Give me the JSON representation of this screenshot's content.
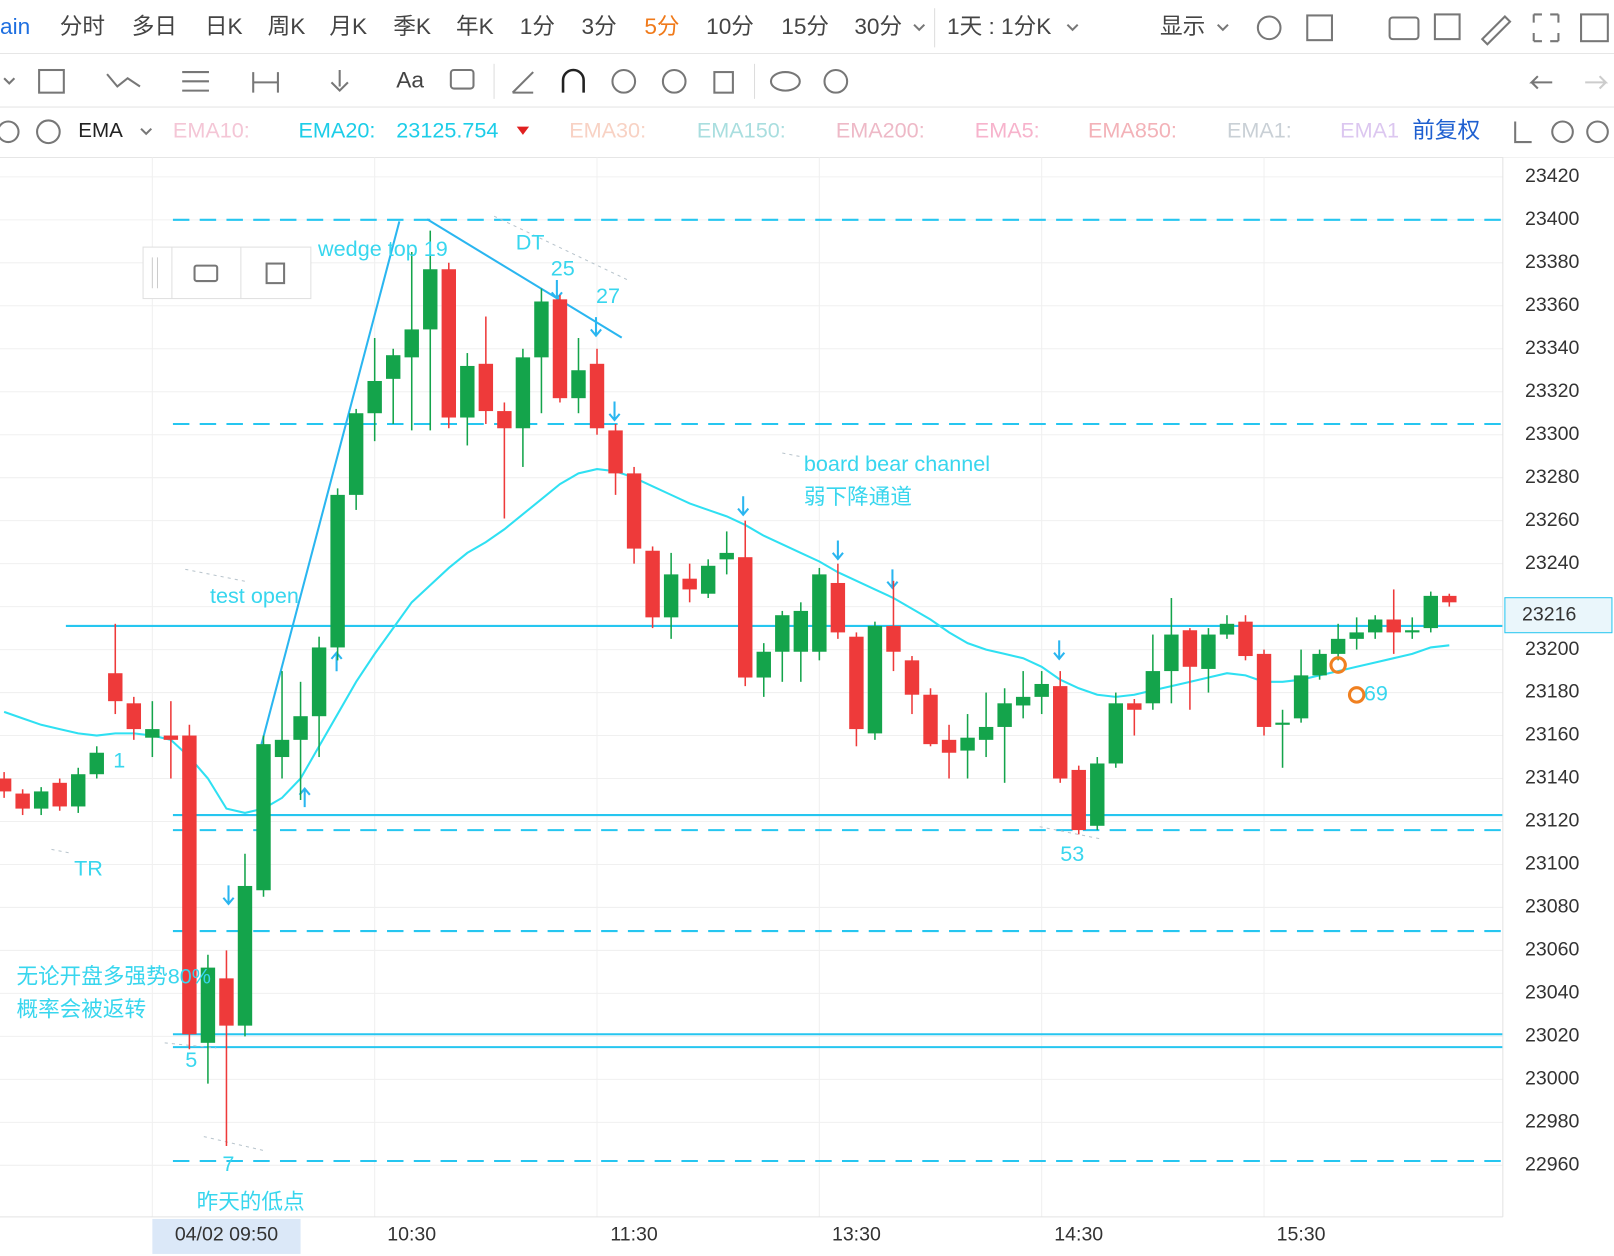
{
  "toolbar": {
    "periods": [
      "ain",
      "分时",
      "多日",
      "日K",
      "周K",
      "月K",
      "季K",
      "年K",
      "1分",
      "3分",
      "5分",
      "10分",
      "15分",
      "30分"
    ],
    "active_index": 10,
    "active_color": "#f07a1a",
    "interval": "1天 : 1分K",
    "display": "显示",
    "text_tool": "Aa"
  },
  "indicator_bar": {
    "name": "EMA",
    "items": [
      {
        "label": "EMA10:",
        "color": "#f4c6d6"
      },
      {
        "label": "EMA20:",
        "value": 23125.754,
        "color": "#1ccde8"
      },
      {
        "label": "EMA30:",
        "color": "#f8d2c4"
      },
      {
        "label": "EMA150:",
        "color": "#a9dedf"
      },
      {
        "label": "EMA200:",
        "color": "#eeb9c7"
      },
      {
        "label": "EMA5:",
        "color": "#f7b3cc"
      },
      {
        "label": "EMA850:",
        "color": "#f3b2b8"
      },
      {
        "label": "EMA1:",
        "color": "#c9d0d6"
      },
      {
        "label": "EMA1",
        "color": "#dcc7f0"
      }
    ],
    "adjust": "前复权"
  },
  "chart_data": {
    "type": "candlestick",
    "categories": [
      null,
      null,
      null,
      null,
      null,
      null,
      null,
      null,
      null,
      null,
      null,
      null,
      null,
      null,
      null,
      null,
      null,
      null,
      null,
      null,
      null,
      null,
      "10:30",
      null,
      null,
      null,
      null,
      null,
      null,
      null,
      null,
      null,
      null,
      null,
      "11:30",
      null,
      null,
      null,
      null,
      null,
      null,
      null,
      null,
      null,
      null,
      null,
      "13:30",
      null,
      null,
      null,
      null,
      null,
      null,
      null,
      null,
      null,
      null,
      null,
      "14:30",
      null,
      null,
      null,
      null,
      null,
      null,
      null,
      null,
      null,
      null,
      null,
      "15:30",
      null,
      null,
      null,
      null,
      null,
      null,
      null,
      null
    ],
    "open": [
      23140,
      23133,
      23126,
      23138,
      23127,
      23142,
      23189,
      23175,
      23159,
      23160,
      23160,
      23017,
      23047,
      23025,
      23088,
      23150,
      23158,
      23169,
      23201,
      23272,
      23310,
      23326,
      23336,
      23349,
      23377,
      23308,
      23333,
      23311,
      23303,
      23336,
      23363,
      23317,
      23333,
      23302,
      23282,
      23246,
      23215,
      23233,
      23226,
      23242,
      23243,
      23187,
      23199,
      23199,
      23199,
      23231,
      23206,
      23161,
      23211,
      23195,
      23179,
      23158,
      23153,
      23158,
      23164,
      23174,
      23178,
      23183,
      23144,
      23118,
      23147,
      23175,
      23175,
      23190,
      23209,
      23191,
      23207,
      23213,
      23198,
      23165,
      23168,
      23188,
      23198,
      23205,
      23208,
      23214,
      23208,
      23210,
      23225
    ],
    "high": [
      23143,
      23135,
      23136,
      23140,
      23145,
      23155,
      23212,
      23178,
      23176,
      23176,
      23165,
      23058,
      23060,
      23105,
      23160,
      23190,
      23185,
      23206,
      23275,
      23312,
      23345,
      23340,
      23385,
      23395,
      23380,
      23338,
      23355,
      23315,
      23340,
      23368,
      23365,
      23345,
      23340,
      23305,
      23285,
      23248,
      23245,
      23240,
      23242,
      23255,
      23260,
      23203,
      23218,
      23222,
      23238,
      23240,
      23208,
      23213,
      23232,
      23197,
      23182,
      23165,
      23170,
      23180,
      23182,
      23190,
      23190,
      23190,
      23146,
      23150,
      23180,
      23177,
      23207,
      23224,
      23210,
      23210,
      23216,
      23216,
      23200,
      23172,
      23200,
      23200,
      23212,
      23215,
      23216,
      23228,
      23215,
      23227,
      23226
    ],
    "low": [
      23131,
      23123,
      23123,
      23125,
      23124,
      23140,
      23170,
      23158,
      23150,
      23140,
      23014,
      22998,
      22969,
      23020,
      23085,
      23140,
      23130,
      23150,
      23195,
      23265,
      23297,
      23305,
      23302,
      23302,
      23303,
      23295,
      23305,
      23261,
      23285,
      23310,
      23315,
      23310,
      23300,
      23272,
      23240,
      23210,
      23205,
      23222,
      23224,
      23235,
      23183,
      23178,
      23185,
      23185,
      23195,
      23205,
      23155,
      23158,
      23190,
      23170,
      23155,
      23140,
      23140,
      23150,
      23138,
      23168,
      23170,
      23138,
      23114,
      23116,
      23145,
      23160,
      23172,
      23175,
      23172,
      23180,
      23205,
      23195,
      23160,
      23145,
      23166,
      23186,
      23195,
      23200,
      23205,
      23198,
      23205,
      23208,
      23220
    ],
    "close": [
      23134,
      23126,
      23134,
      23127,
      23142,
      23152,
      23176,
      23163,
      23163,
      23158,
      23021,
      23052,
      23025,
      23090,
      23156,
      23158,
      23169,
      23201,
      23272,
      23310,
      23325,
      23337,
      23349,
      23377,
      23308,
      23332,
      23311,
      23303,
      23336,
      23362,
      23317,
      23330,
      23303,
      23282,
      23247,
      23215,
      23235,
      23228,
      23239,
      23245,
      23187,
      23199,
      23216,
      23218,
      23235,
      23208,
      23163,
      23211,
      23199,
      23179,
      23156,
      23152,
      23159,
      23164,
      23175,
      23178,
      23184,
      23140,
      23116,
      23147,
      23175,
      23172,
      23190,
      23207,
      23192,
      23207,
      23212,
      23197,
      23164,
      23166,
      23188,
      23198,
      23205,
      23208,
      23214,
      23208,
      23209,
      23225,
      23222
    ],
    "up_color": "#14a44b",
    "down_color": "#ee3a3a",
    "ema": {
      "color": "#2fe0f2",
      "values": [
        23171,
        23168,
        23165,
        23163,
        23161,
        23160,
        23161,
        23161,
        23160,
        23158,
        23150,
        23140,
        23126,
        23124,
        23126,
        23131,
        23140,
        23155,
        23170,
        23185,
        23198,
        23210,
        23222,
        23230,
        23238,
        23245,
        23250,
        23256,
        23263,
        23270,
        23277,
        23282,
        23284,
        23283,
        23280,
        23276,
        23272,
        23268,
        23265,
        23262,
        23258,
        23253,
        23249,
        23245,
        23241,
        23236,
        23232,
        23228,
        23224,
        23219,
        23214,
        23208,
        23203,
        23200,
        23198,
        23196,
        23192,
        23186,
        23182,
        23179,
        23178,
        23179,
        23181,
        23183,
        23185,
        23187,
        23189,
        23188,
        23185,
        23185,
        23186,
        23188,
        23190,
        23192,
        23194,
        23196,
        23198,
        23201,
        23202
      ]
    },
    "ylim": [
      22936,
      23429
    ],
    "yticks": [
      22960,
      22980,
      23000,
      23020,
      23040,
      23060,
      23080,
      23100,
      23120,
      23140,
      23160,
      23180,
      23200,
      23220,
      23240,
      23260,
      23280,
      23300,
      23320,
      23340,
      23360,
      23380,
      23400,
      23420
    ],
    "grid": true,
    "last_price": {
      "value": 23216,
      "color": "#26c6f0"
    },
    "hlines": [
      {
        "value": 23400,
        "style": "dashed"
      },
      {
        "value": 23305,
        "style": "dashed"
      },
      {
        "value": 23211,
        "style": "solid"
      },
      {
        "value": 23123,
        "style": "solid"
      },
      {
        "value": 23116,
        "style": "dashed"
      },
      {
        "value": 23069,
        "style": "dashed"
      },
      {
        "value": 23021,
        "style": "solid"
      },
      {
        "value": 23015,
        "style": "solid"
      },
      {
        "value": 22962,
        "style": "dashed"
      }
    ],
    "hline_color": "#26c6f0",
    "crosshair": {
      "index": 12,
      "label": "04/02 09:50"
    },
    "annotations": [
      "wedge top 19",
      "DT",
      "25",
      "27",
      "board bear channel",
      "弱下降通道",
      "test open",
      "1",
      "TR",
      "无论开盘多强势80%",
      "概率会被返转",
      "5",
      "7",
      "昨天的低点",
      "53",
      "69"
    ],
    "annotation_color": "#38d6ee"
  }
}
